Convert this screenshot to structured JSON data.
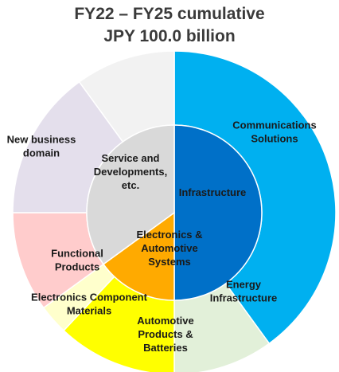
{
  "title_line_1": "FY22 – FY25 cumulative",
  "title_line_2": "JPY 100.0 billion",
  "chart_data": {
    "type": "sunburst",
    "inner": [
      {
        "name": "Infrastructure",
        "lines": [
          "Infrastructure"
        ],
        "value": 50,
        "color": "#0070c8"
      },
      {
        "name": "Electronics & Automotive Systems",
        "lines": [
          "Electronics &",
          "Automotive",
          "Systems"
        ],
        "value": 15,
        "color": "#ffaa00"
      },
      {
        "name": "Service and Developments, etc.",
        "lines": [
          "Service and",
          "Developments,",
          "etc."
        ],
        "value": 35,
        "color": "#d9d9d9"
      }
    ],
    "outer": [
      {
        "name": "Communications Solutions",
        "lines": [
          "Communications",
          "Solutions"
        ],
        "value": 40,
        "parent": "Infrastructure",
        "color": "#00b0f0"
      },
      {
        "name": "Energy Infrastructure",
        "lines": [
          "Energy",
          "Infrastructure"
        ],
        "value": 10,
        "parent": "Infrastructure",
        "color": "#e2f0d9"
      },
      {
        "name": "Automotive Products & Batteries",
        "lines": [
          "Automotive",
          "Products &",
          "Batteries"
        ],
        "value": 12,
        "parent": "Electronics & Automotive Systems",
        "color": "#ffff00"
      },
      {
        "name": "Electronics Component Materials",
        "lines": [
          "Electronics Component",
          "Materials"
        ],
        "value": 3,
        "parent": "Electronics & Automotive Systems",
        "color": "#ffffcc"
      },
      {
        "name": "Functional Products",
        "lines": [
          "Functional",
          "Products"
        ],
        "value": 10,
        "parent": "Service and Developments, etc.",
        "color": "#ffcccc"
      },
      {
        "name": "New business domain",
        "lines": [
          "New business",
          "domain"
        ],
        "value": 15,
        "parent": "Service and Developments, etc.",
        "color": "#e4dfec"
      },
      {
        "name": "",
        "lines": [],
        "value": 10,
        "parent": "Service and Developments, etc.",
        "color": "#f2f2f2"
      }
    ]
  }
}
